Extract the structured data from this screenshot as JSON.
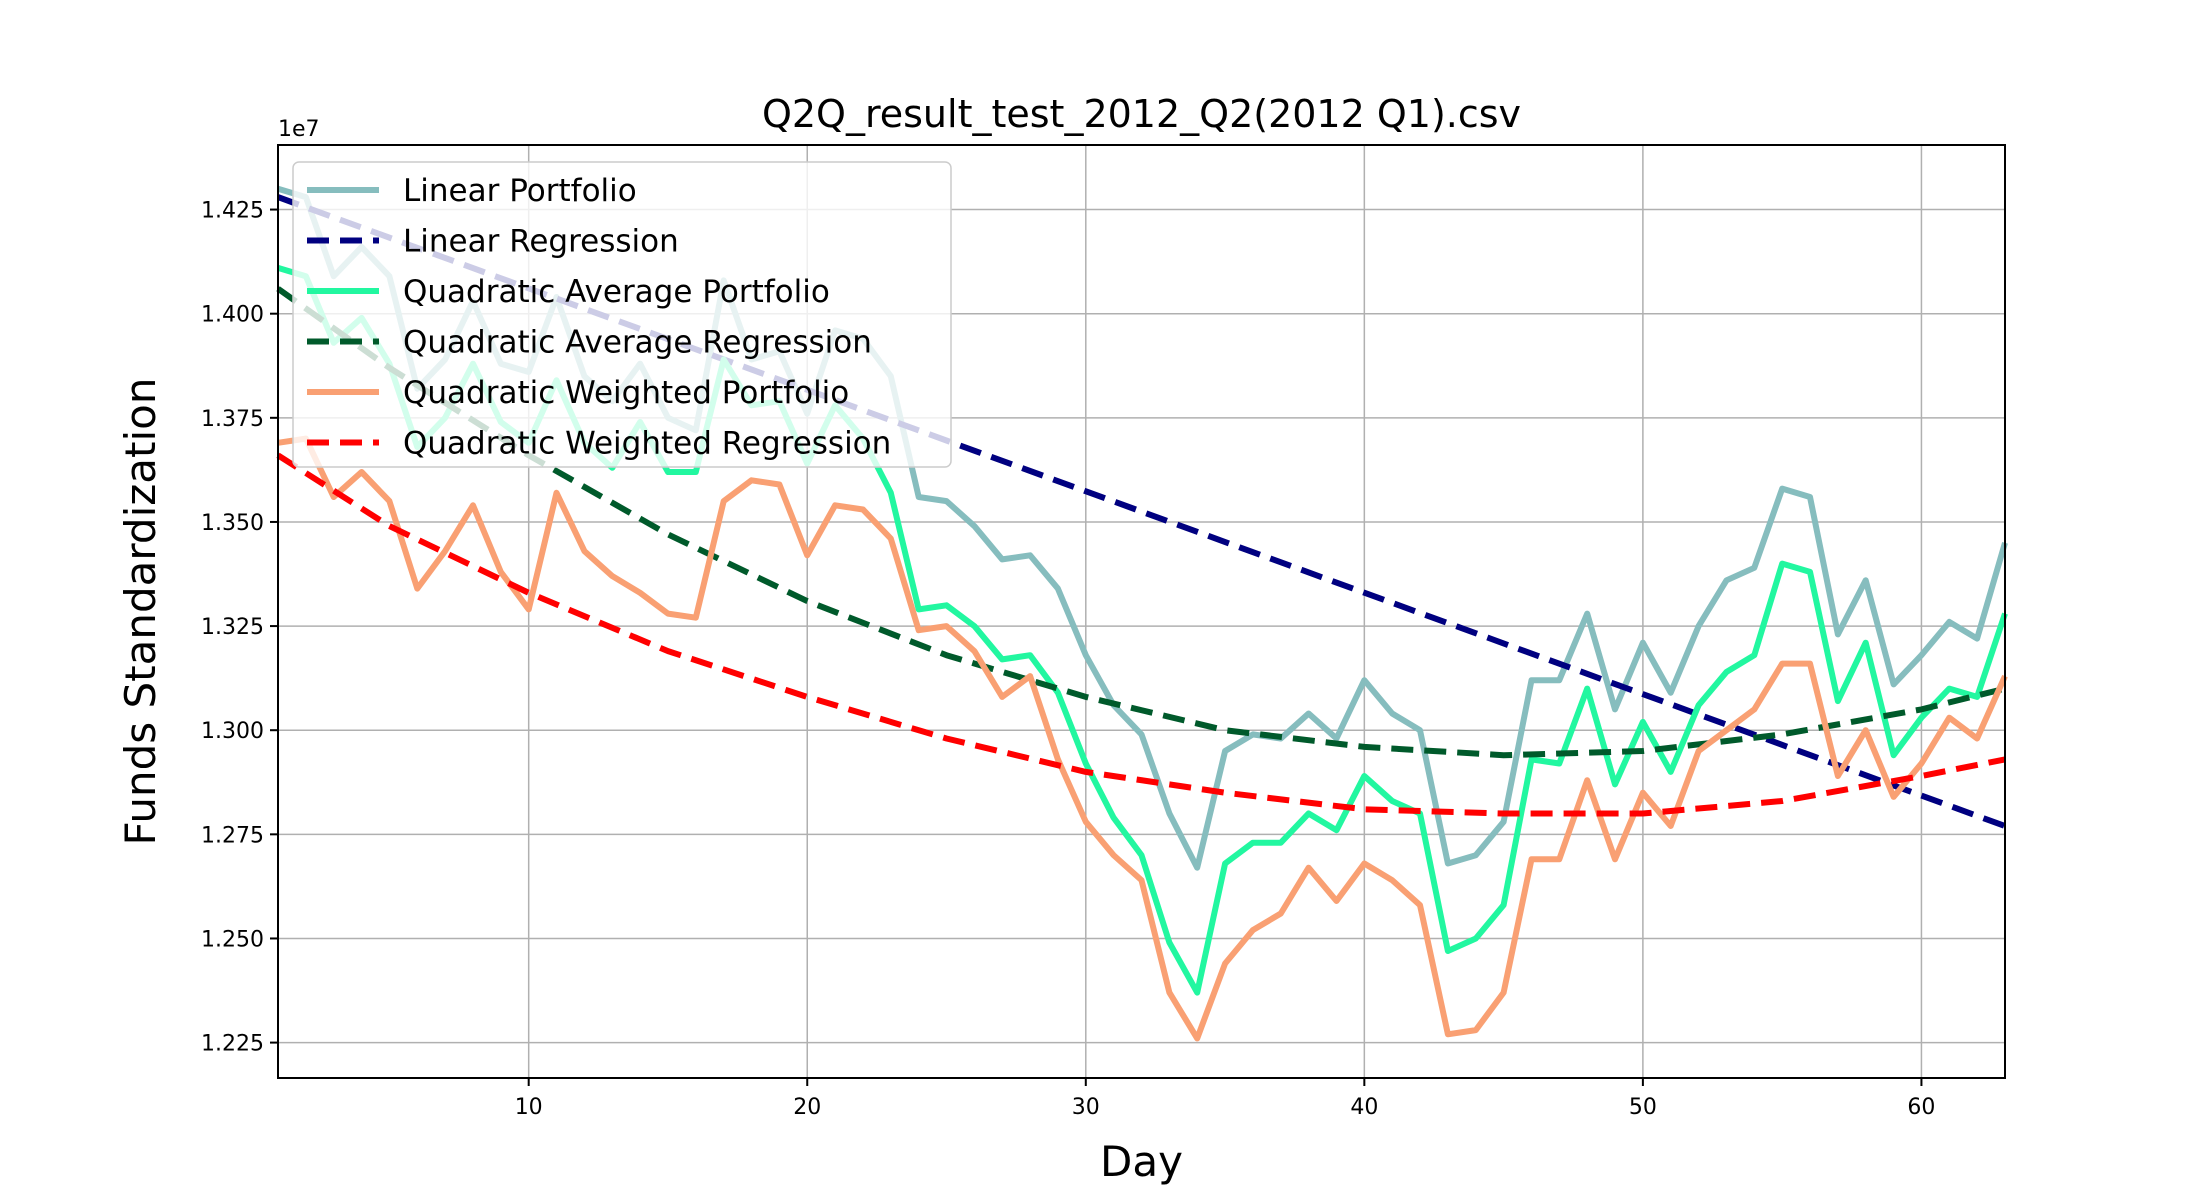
{
  "chart_data": {
    "type": "line",
    "title": "Q2Q_result_test_2012_Q2(2012 Q1).csv",
    "xlabel": "Day",
    "ylabel": "Funds Standardization",
    "y_offset_label": "1e7",
    "xlim": [
      1,
      63
    ],
    "ylim": [
      1.2165,
      1.4405
    ],
    "x_ticks": [
      10,
      20,
      30,
      40,
      50,
      60
    ],
    "y_ticks": [
      1.225,
      1.25,
      1.275,
      1.3,
      1.325,
      1.35,
      1.375,
      1.4,
      1.425
    ],
    "grid": true,
    "legend_position": "upper-left",
    "series": [
      {
        "name": "Linear Portfolio",
        "color": "#86bdbe",
        "style": "solid",
        "x": [
          1,
          2,
          3,
          4,
          5,
          6,
          7,
          8,
          9,
          10,
          11,
          12,
          13,
          14,
          15,
          16,
          17,
          18,
          19,
          20,
          21,
          22,
          23,
          24,
          25,
          26,
          27,
          28,
          29,
          30,
          31,
          32,
          33,
          34,
          35,
          36,
          37,
          38,
          39,
          40,
          41,
          42,
          43,
          44,
          45,
          46,
          47,
          48,
          49,
          50,
          51,
          52,
          53,
          54,
          55,
          56,
          57,
          58,
          59,
          60,
          61,
          62,
          63
        ],
        "y": [
          1.43,
          1.428,
          1.409,
          1.416,
          1.409,
          1.382,
          1.389,
          1.403,
          1.388,
          1.386,
          1.404,
          1.385,
          1.379,
          1.388,
          1.375,
          1.372,
          1.408,
          1.389,
          1.391,
          1.376,
          1.396,
          1.394,
          1.385,
          1.356,
          1.355,
          1.349,
          1.341,
          1.342,
          1.334,
          1.318,
          1.306,
          1.299,
          1.28,
          1.267,
          1.295,
          1.299,
          1.298,
          1.304,
          1.298,
          1.312,
          1.304,
          1.3,
          1.268,
          1.27,
          1.278,
          1.312,
          1.312,
          1.328,
          1.305,
          1.321,
          1.309,
          1.325,
          1.336,
          1.339,
          1.358,
          1.356,
          1.323,
          1.336,
          1.311,
          1.318,
          1.326,
          1.322,
          1.345
        ]
      },
      {
        "name": "Linear Regression",
        "color": "#000080",
        "style": "dashed",
        "x": [
          1,
          63
        ],
        "y": [
          1.428,
          1.277
        ]
      },
      {
        "name": "Quadratic Average Portfolio",
        "color": "#22f7a0",
        "style": "solid",
        "x": [
          1,
          2,
          3,
          4,
          5,
          6,
          7,
          8,
          9,
          10,
          11,
          12,
          13,
          14,
          15,
          16,
          17,
          18,
          19,
          20,
          21,
          22,
          23,
          24,
          25,
          26,
          27,
          28,
          29,
          30,
          31,
          32,
          33,
          34,
          35,
          36,
          37,
          38,
          39,
          40,
          41,
          42,
          43,
          44,
          45,
          46,
          47,
          48,
          49,
          50,
          51,
          52,
          53,
          54,
          55,
          56,
          57,
          58,
          59,
          60,
          61,
          62,
          63
        ],
        "y": [
          1.411,
          1.409,
          1.393,
          1.399,
          1.388,
          1.368,
          1.375,
          1.388,
          1.374,
          1.369,
          1.384,
          1.369,
          1.363,
          1.374,
          1.362,
          1.362,
          1.389,
          1.378,
          1.379,
          1.364,
          1.378,
          1.37,
          1.357,
          1.329,
          1.33,
          1.325,
          1.317,
          1.318,
          1.309,
          1.292,
          1.279,
          1.27,
          1.249,
          1.237,
          1.268,
          1.273,
          1.273,
          1.28,
          1.276,
          1.289,
          1.283,
          1.28,
          1.247,
          1.25,
          1.258,
          1.293,
          1.292,
          1.31,
          1.287,
          1.302,
          1.29,
          1.306,
          1.314,
          1.318,
          1.34,
          1.338,
          1.307,
          1.321,
          1.294,
          1.303,
          1.31,
          1.308,
          1.328
        ]
      },
      {
        "name": "Quadratic Average Regression",
        "color": "#005a2b",
        "style": "dashed",
        "x": [
          1,
          5,
          10,
          15,
          20,
          25,
          30,
          35,
          40,
          45,
          50,
          55,
          60,
          63
        ],
        "y": [
          1.406,
          1.387,
          1.366,
          1.347,
          1.331,
          1.318,
          1.308,
          1.3,
          1.296,
          1.294,
          1.295,
          1.299,
          1.305,
          1.31
        ]
      },
      {
        "name": "Quadratic Weighted Portfolio",
        "color": "#f9a073",
        "style": "solid",
        "x": [
          1,
          2,
          3,
          4,
          5,
          6,
          7,
          8,
          9,
          10,
          11,
          12,
          13,
          14,
          15,
          16,
          17,
          18,
          19,
          20,
          21,
          22,
          23,
          24,
          25,
          26,
          27,
          28,
          29,
          30,
          31,
          32,
          33,
          34,
          35,
          36,
          37,
          38,
          39,
          40,
          41,
          42,
          43,
          44,
          45,
          46,
          47,
          48,
          49,
          50,
          51,
          52,
          53,
          54,
          55,
          56,
          57,
          58,
          59,
          60,
          61,
          62,
          63
        ],
        "y": [
          1.369,
          1.37,
          1.356,
          1.362,
          1.355,
          1.334,
          1.343,
          1.354,
          1.338,
          1.329,
          1.357,
          1.343,
          1.337,
          1.333,
          1.328,
          1.327,
          1.355,
          1.36,
          1.359,
          1.342,
          1.354,
          1.353,
          1.346,
          1.324,
          1.325,
          1.319,
          1.308,
          1.313,
          1.293,
          1.278,
          1.27,
          1.264,
          1.237,
          1.226,
          1.244,
          1.252,
          1.256,
          1.267,
          1.259,
          1.268,
          1.264,
          1.258,
          1.227,
          1.228,
          1.237,
          1.269,
          1.269,
          1.288,
          1.269,
          1.285,
          1.277,
          1.295,
          1.3,
          1.305,
          1.316,
          1.316,
          1.289,
          1.3,
          1.284,
          1.292,
          1.303,
          1.298,
          1.313
        ]
      },
      {
        "name": "Quadratic Weighted Regression",
        "color": "#ff0000",
        "style": "dashed",
        "x": [
          1,
          5,
          10,
          15,
          20,
          25,
          30,
          35,
          40,
          45,
          50,
          55,
          60,
          63
        ],
        "y": [
          1.366,
          1.349,
          1.333,
          1.319,
          1.308,
          1.298,
          1.29,
          1.285,
          1.281,
          1.28,
          1.28,
          1.283,
          1.289,
          1.293
        ]
      }
    ]
  }
}
